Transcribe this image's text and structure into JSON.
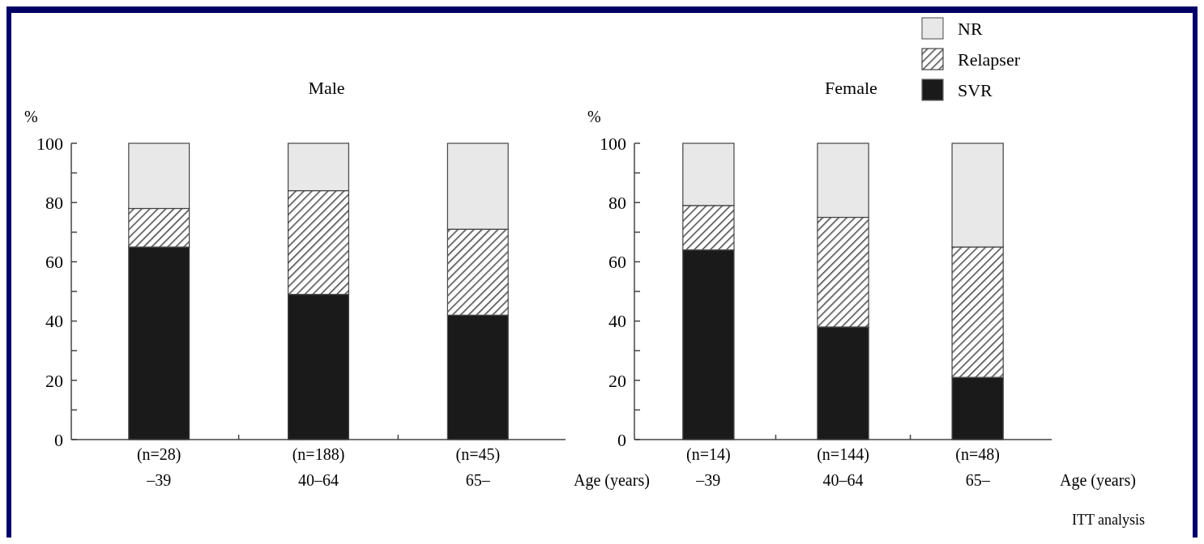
{
  "chart_data": [
    {
      "type": "bar",
      "title": "Male",
      "ylabel": "%",
      "xlabel": "Age (years)",
      "stacked": true,
      "legend": "top right",
      "categories": [
        "(n=28)\n–39",
        "(n=188)\n40–64",
        "(n=45)\n65–"
      ],
      "series": [
        {
          "name": "SVR",
          "color": "#1a1a1a",
          "values": [
            65,
            49,
            42
          ]
        },
        {
          "name": "Relapser",
          "color": "#444444",
          "values": [
            13,
            35,
            29
          ]
        },
        {
          "name": "NR",
          "color": "#e8e8e8",
          "values": [
            22,
            16,
            29
          ]
        }
      ],
      "ylim": [
        0,
        100
      ],
      "yticks": [
        0,
        {
          "value": 10,
          "label": null
        },
        20,
        {
          "value": 30,
          "label": null
        },
        40,
        {
          "value": 50,
          "label": null
        },
        60,
        {
          "value": 70,
          "label": null
        },
        80,
        {
          "value": 90,
          "label": null
        },
        100
      ],
      "grid": false
    },
    {
      "type": "bar",
      "title": "Female",
      "ylabel": "%",
      "xlabel": "Age (years)",
      "stacked": true,
      "categories": [
        "(n=14)\n–39",
        "(n=144)\n40–64",
        "(n=48)\n65–"
      ],
      "series": [
        {
          "color": "#1a1a1a",
          "values": [
            64,
            38,
            21
          ]
        },
        {
          "color": "#444444",
          "values": [
            15,
            37,
            44
          ]
        },
        {
          "color": "#e8e8e8",
          "values": [
            21,
            25,
            35
          ]
        }
      ],
      "ylim": [
        0,
        100
      ],
      "yticks": [
        0,
        {
          "value": 10,
          "label": null
        },
        20,
        {
          "value": 30,
          "label": null
        },
        40,
        {
          "value": 50,
          "label": null
        },
        60,
        {
          "value": 70,
          "label": null
        },
        80,
        {
          "value": 90,
          "label": null
        },
        100
      ],
      "grid": false,
      "annotations": [
        "ITT analysis"
      ]
    }
  ]
}
